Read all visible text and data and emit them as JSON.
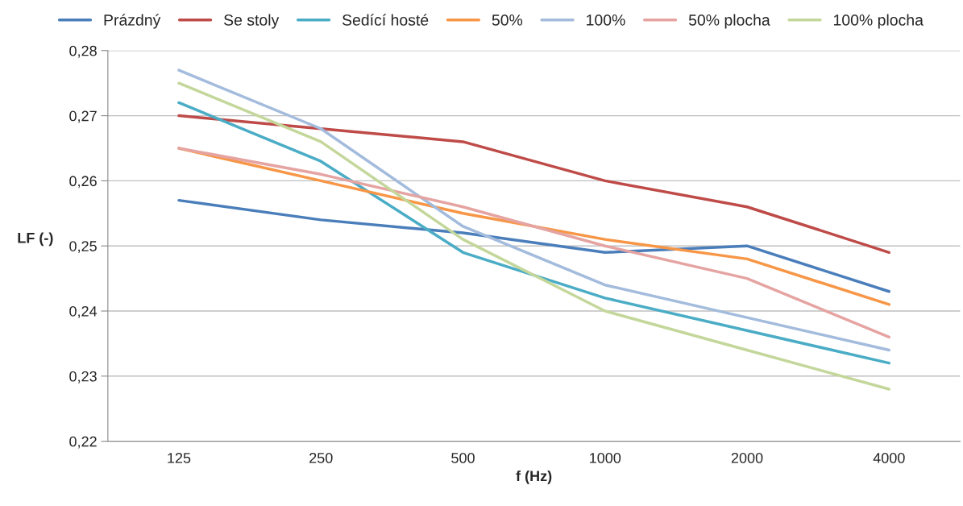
{
  "chart_data": {
    "type": "line",
    "xlabel": "f (Hz)",
    "ylabel": "LF (-)",
    "categories": [
      "125",
      "250",
      "500",
      "1000",
      "2000",
      "4000"
    ],
    "series": [
      {
        "name": "Prázdný",
        "color": "#4a7ebb",
        "values": [
          0.257,
          0.254,
          0.252,
          0.249,
          0.25,
          0.243
        ]
      },
      {
        "name": "Se stoly",
        "color": "#be4b48",
        "values": [
          0.27,
          0.268,
          0.266,
          0.26,
          0.256,
          0.249
        ]
      },
      {
        "name": "Sedící hosté",
        "color": "#4bacc6",
        "values": [
          0.272,
          0.263,
          0.249,
          0.242,
          0.237,
          0.232
        ]
      },
      {
        "name": "50%",
        "color": "#f79646",
        "values": [
          0.265,
          0.26,
          0.255,
          0.251,
          0.248,
          0.241
        ]
      },
      {
        "name": "100%",
        "color": "#a3bbdc",
        "values": [
          0.277,
          0.268,
          0.253,
          0.244,
          0.239,
          0.234
        ]
      },
      {
        "name": "50% plocha",
        "color": "#e5a4a2",
        "values": [
          0.265,
          0.261,
          0.256,
          0.25,
          0.245,
          0.236
        ]
      },
      {
        "name": "100% plocha",
        "color": "#c4d79b",
        "values": [
          0.275,
          0.266,
          0.251,
          0.24,
          0.234,
          0.228
        ]
      }
    ],
    "ylim": [
      0.22,
      0.28
    ],
    "yticks": [
      {
        "value": 0.22,
        "label": "0,22"
      },
      {
        "value": 0.23,
        "label": "0,23"
      },
      {
        "value": 0.24,
        "label": "0,24"
      },
      {
        "value": 0.25,
        "label": "0,25"
      },
      {
        "value": 0.26,
        "label": "0,26"
      },
      {
        "value": 0.27,
        "label": "0,27"
      },
      {
        "value": 0.28,
        "label": "0,28"
      }
    ],
    "grid": "y",
    "legend": "top",
    "marker": "none",
    "line_style": "solid"
  }
}
